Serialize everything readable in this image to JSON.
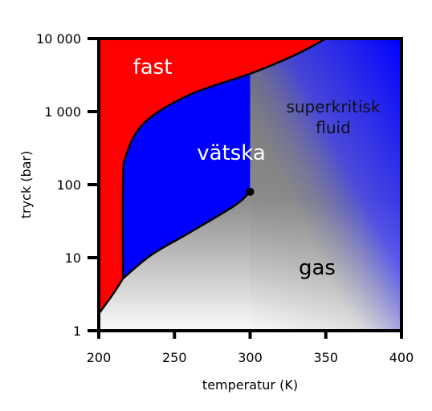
{
  "chart_data": {
    "type": "area",
    "title": "",
    "xlabel": "temperatur (K)",
    "ylabel": "tryck (bar)",
    "xlim": [
      200,
      400
    ],
    "ylim": [
      1,
      10000
    ],
    "yscale": "log",
    "x_ticks": [
      200,
      250,
      300,
      350,
      400
    ],
    "x_tick_labels": [
      "200",
      "250",
      "300",
      "350",
      "400"
    ],
    "y_ticks": [
      1,
      10,
      100,
      1000,
      10000
    ],
    "y_tick_labels": [
      "1",
      "10",
      "100",
      "1 000",
      "10 000"
    ],
    "grid": false,
    "regions": [
      {
        "key": "solid",
        "label": "fast",
        "color": "#ff0000"
      },
      {
        "key": "liquid",
        "label": "vätska",
        "color": "#0000ff"
      },
      {
        "key": "supercritical",
        "label": "superkritisk fluid"
      },
      {
        "key": "gas",
        "label": "gas",
        "color": "#808080"
      }
    ],
    "critical_point": {
      "x": 300,
      "y": 80
    },
    "boundaries": {
      "sublimation": [
        [
          200,
          1.7
        ],
        [
          210,
          3.3
        ],
        [
          216,
          5.2
        ]
      ],
      "melting": [
        [
          216,
          5.2
        ],
        [
          216,
          100
        ],
        [
          218,
          250
        ],
        [
          230,
          700
        ],
        [
          260,
          1700
        ],
        [
          300,
          3300
        ],
        [
          330,
          6000
        ],
        [
          350,
          10000
        ]
      ],
      "vaporization": [
        [
          216,
          5.2
        ],
        [
          235,
          11
        ],
        [
          260,
          22
        ],
        [
          290,
          52
        ],
        [
          300,
          80
        ]
      ]
    }
  }
}
